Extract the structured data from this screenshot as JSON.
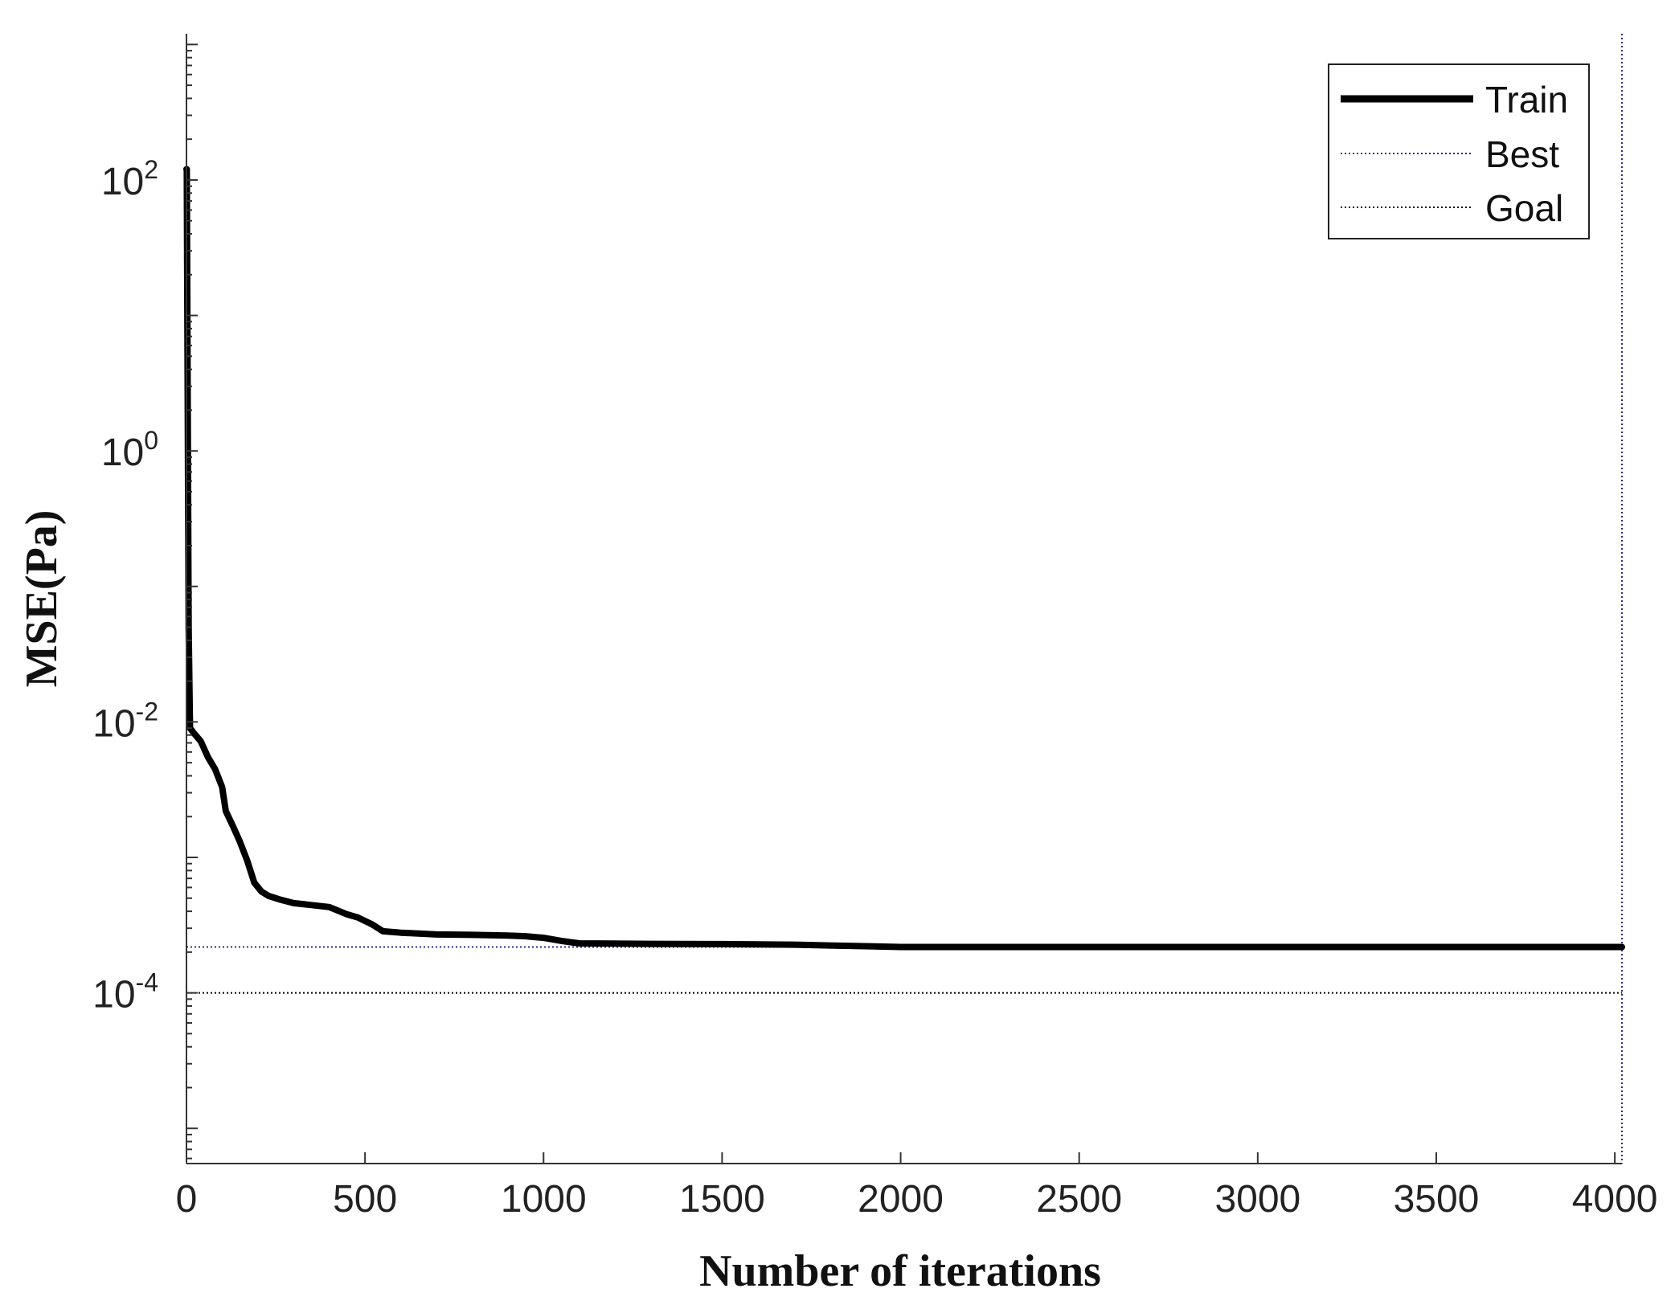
{
  "chart_data": {
    "type": "line",
    "title": "",
    "xlabel": "Number of iterations",
    "ylabel": "MSE(Pa)",
    "xlim": [
      0,
      4020
    ],
    "ylim": [
      5.5e-06,
      1200
    ],
    "yscale": "log",
    "x_ticks": [
      0,
      500,
      1000,
      1500,
      2000,
      2500,
      3000,
      3500,
      4000
    ],
    "x_tick_labels": [
      "0",
      "500",
      "1000",
      "1500",
      "2000",
      "2500",
      "3000",
      "3500",
      "4000"
    ],
    "y_ticks": [
      {
        "value": 100,
        "base": "10",
        "exp": "2"
      },
      {
        "value": 1,
        "base": "10",
        "exp": "0"
      },
      {
        "value": 0.01,
        "base": "10",
        "exp": "-2"
      },
      {
        "value": 0.0001,
        "base": "10",
        "exp": "-4"
      }
    ],
    "grid": false,
    "legend": {
      "placement": "top-right",
      "entries": [
        {
          "label": "Train",
          "style": "thick-solid",
          "color": "#000000"
        },
        {
          "label": "Best",
          "style": "dotted",
          "color": "#2b2b8c"
        },
        {
          "label": "Goal",
          "style": "dotted",
          "color": "#000000"
        }
      ]
    },
    "series": [
      {
        "name": "Train",
        "color": "#000000",
        "x": [
          0,
          1,
          2,
          4,
          6,
          10,
          20,
          40,
          60,
          80,
          100,
          110,
          130,
          150,
          170,
          190,
          210,
          230,
          260,
          300,
          350,
          400,
          450,
          480,
          520,
          550,
          600,
          700,
          800,
          900,
          950,
          1000,
          1050,
          1100,
          1300,
          1500,
          1700,
          1800,
          1900,
          2000,
          2500,
          3000,
          3500,
          4020
        ],
        "y": [
          120,
          120,
          20,
          1,
          0.05,
          0.009,
          0.0083,
          0.0072,
          0.0055,
          0.0045,
          0.0033,
          0.0022,
          0.0017,
          0.0013,
          0.00095,
          0.00065,
          0.00056,
          0.00052,
          0.00049,
          0.00046,
          0.000445,
          0.00043,
          0.00038,
          0.00036,
          0.00032,
          0.000285,
          0.000278,
          0.00027,
          0.000268,
          0.000265,
          0.000262,
          0.000255,
          0.000242,
          0.000232,
          0.00023,
          0.000229,
          0.000227,
          0.000224,
          0.000221,
          0.000218,
          0.000218,
          0.000218,
          0.000218,
          0.000218
        ]
      }
    ],
    "reference_lines": [
      {
        "name": "Best",
        "orientation": "horizontal",
        "value": 0.000218,
        "color": "#2b2b8c"
      },
      {
        "name": "Best",
        "orientation": "vertical",
        "value": 4020,
        "color": "#2b2b8c"
      },
      {
        "name": "Goal",
        "orientation": "horizontal",
        "value": 0.0001,
        "color": "#000000"
      }
    ]
  }
}
